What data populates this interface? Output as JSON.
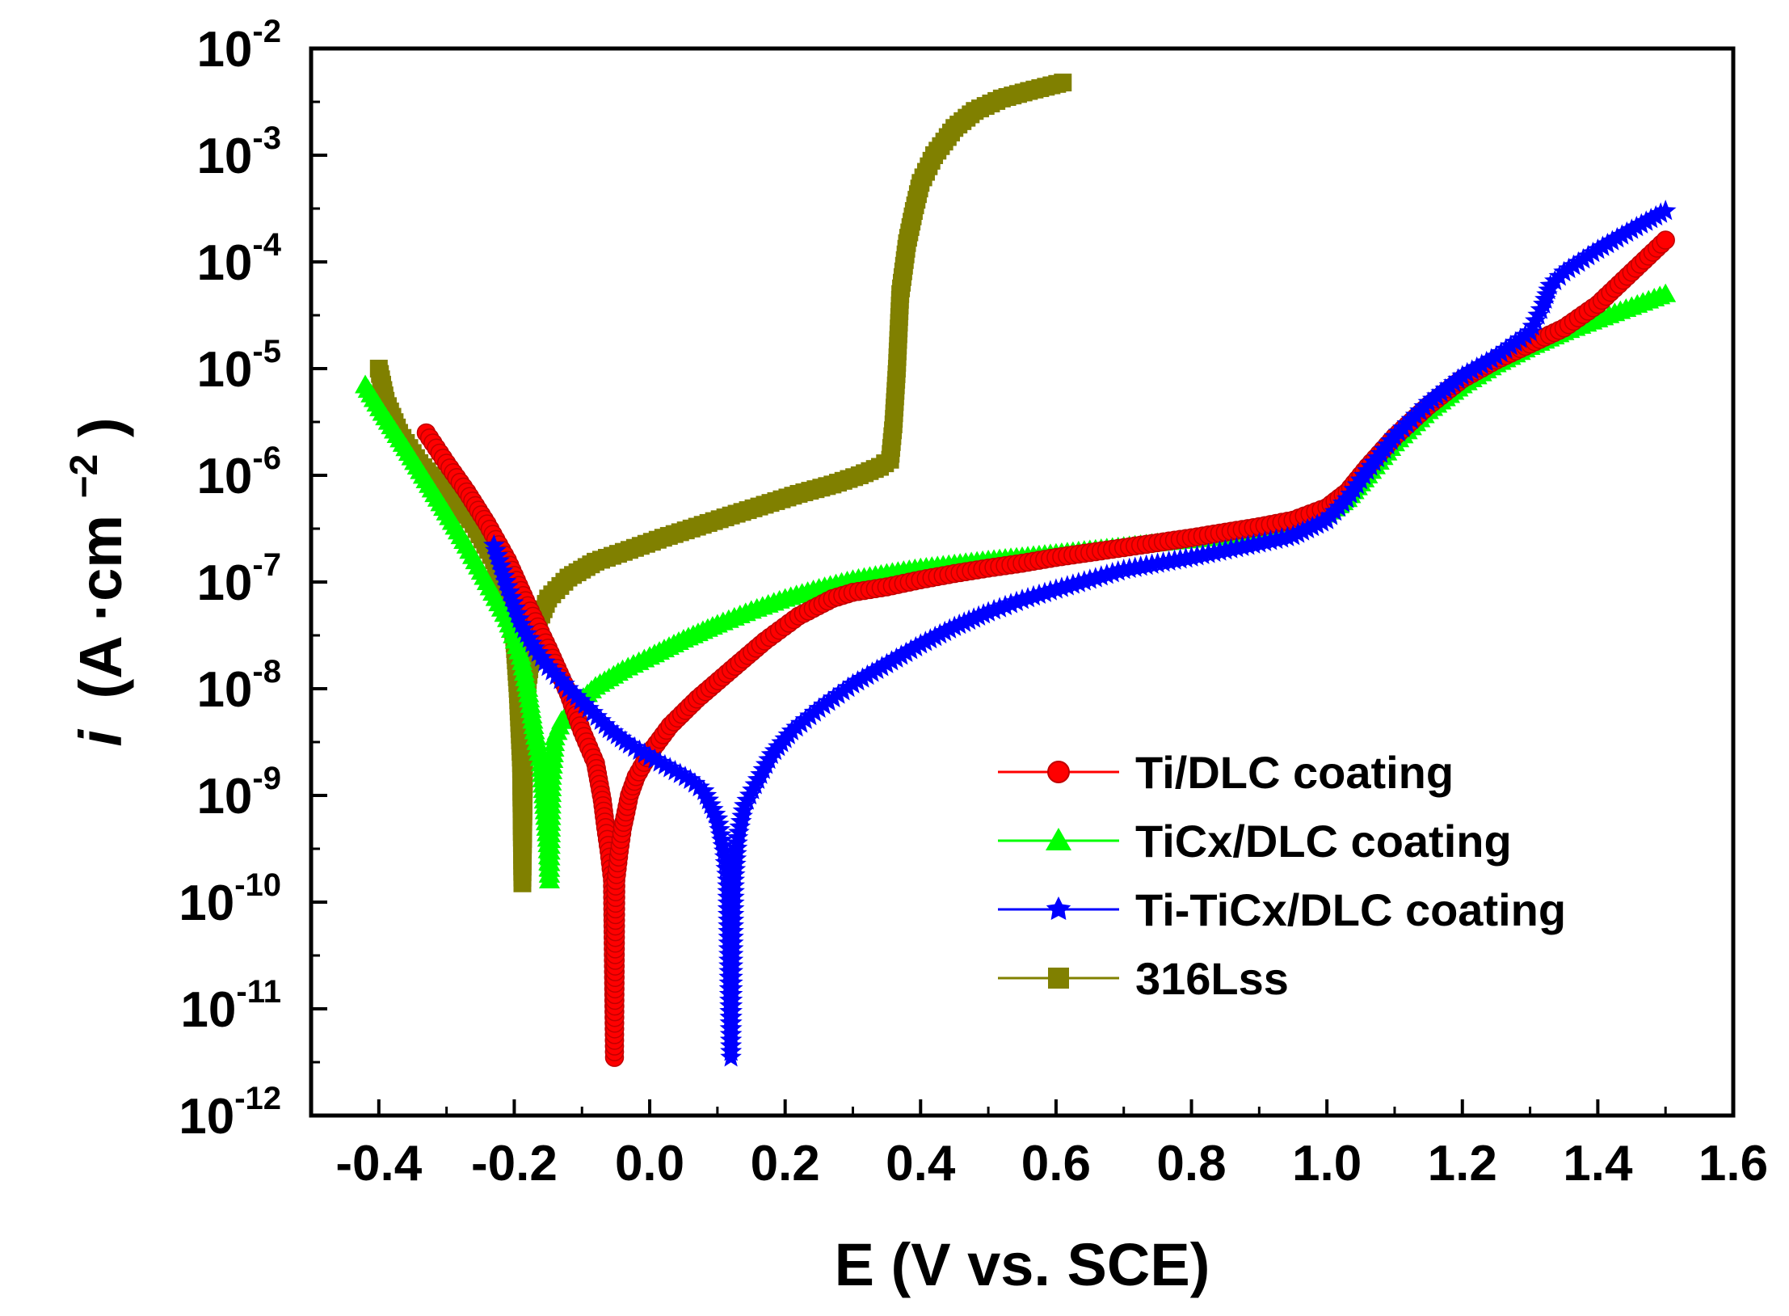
{
  "chart_data": {
    "type": "line",
    "title": "",
    "xlabel": "E (V vs. SCE)",
    "ylabel_italic": "i",
    "ylabel_unit": "(A ·cm",
    "ylabel_unit_exp": "−2",
    "ylabel_close": ")",
    "y_scale": "log",
    "xlim": [
      -0.5,
      1.6
    ],
    "ylim_exp": [
      -12,
      -2
    ],
    "x_ticks": [
      -0.4,
      -0.2,
      0.0,
      0.2,
      0.4,
      0.6,
      0.8,
      1.0,
      1.2,
      1.4,
      1.6
    ],
    "x_tick_labels": [
      "-0.4",
      "-0.2",
      "0.0",
      "0.2",
      "0.4",
      "0.6",
      "0.8",
      "1.0",
      "1.2",
      "1.4",
      "1.6"
    ],
    "y_tick_exponents": [
      -12,
      -11,
      -10,
      -9,
      -8,
      -7,
      -6,
      -5,
      -4,
      -3,
      -2
    ],
    "y_tick_base": "10",
    "y_tick_exp_labels": [
      "-12",
      "-11",
      "-10",
      "-9",
      "-8",
      "-7",
      "-6",
      "-5",
      "-4",
      "-3",
      "-2"
    ],
    "legend_position": "lower-right",
    "series": [
      {
        "name": "Ti/DLC coating",
        "color": "#ff0000",
        "marker": "circle",
        "points": [
          [
            -0.33,
            2.5e-06
          ],
          [
            -0.3,
            1.3e-06
          ],
          [
            -0.27,
            7e-07
          ],
          [
            -0.24,
            3.5e-07
          ],
          [
            -0.21,
            1.6e-07
          ],
          [
            -0.18,
            6e-08
          ],
          [
            -0.15,
            2.4e-08
          ],
          [
            -0.12,
            9e-09
          ],
          [
            -0.1,
            4e-09
          ],
          [
            -0.08,
            2e-09
          ],
          [
            -0.07,
            9e-10
          ],
          [
            -0.065,
            5e-10
          ],
          [
            -0.06,
            3e-10
          ],
          [
            -0.055,
            1.6e-10
          ],
          [
            -0.052,
            3.5e-12
          ],
          [
            -0.05,
            1.6e-10
          ],
          [
            -0.045,
            3e-10
          ],
          [
            -0.04,
            5e-10
          ],
          [
            -0.035,
            7e-10
          ],
          [
            -0.03,
            1e-09
          ],
          [
            -0.02,
            1.5e-09
          ],
          [
            0.0,
            2.5e-09
          ],
          [
            0.03,
            4.5e-09
          ],
          [
            0.07,
            8e-09
          ],
          [
            0.12,
            1.5e-08
          ],
          [
            0.17,
            2.8e-08
          ],
          [
            0.22,
            4.8e-08
          ],
          [
            0.27,
            7e-08
          ],
          [
            0.3,
            8e-08
          ],
          [
            0.35,
            9e-08
          ],
          [
            0.4,
            1.05e-07
          ],
          [
            0.45,
            1.2e-07
          ],
          [
            0.5,
            1.35e-07
          ],
          [
            0.55,
            1.5e-07
          ],
          [
            0.6,
            1.7e-07
          ],
          [
            0.7,
            2.1e-07
          ],
          [
            0.8,
            2.6e-07
          ],
          [
            0.9,
            3.3e-07
          ],
          [
            0.95,
            3.8e-07
          ],
          [
            1.0,
            5e-07
          ],
          [
            1.03,
            7e-07
          ],
          [
            1.06,
            1.2e-06
          ],
          [
            1.1,
            2.3e-06
          ],
          [
            1.15,
            4.5e-06
          ],
          [
            1.2,
            8e-06
          ],
          [
            1.25,
            1.2e-05
          ],
          [
            1.3,
            1.7e-05
          ],
          [
            1.35,
            2.4e-05
          ],
          [
            1.4,
            4e-05
          ],
          [
            1.45,
            8e-05
          ],
          [
            1.5,
            0.00016
          ]
        ]
      },
      {
        "name": "TiCx/DLC coating",
        "color": "#00ff00",
        "marker": "triangle",
        "points": [
          [
            -0.42,
            7e-06
          ],
          [
            -0.39,
            3.5e-06
          ],
          [
            -0.36,
            1.8e-06
          ],
          [
            -0.33,
            9e-07
          ],
          [
            -0.3,
            4.5e-07
          ],
          [
            -0.27,
            2.2e-07
          ],
          [
            -0.24,
            1e-07
          ],
          [
            -0.21,
            4.5e-08
          ],
          [
            -0.19,
            2e-08
          ],
          [
            -0.18,
            1e-08
          ],
          [
            -0.17,
            4e-09
          ],
          [
            -0.16,
            2e-09
          ],
          [
            -0.155,
            8e-10
          ],
          [
            -0.15,
            3.5e-10
          ],
          [
            -0.148,
            1.6e-10
          ],
          [
            -0.145,
            1.5e-09
          ],
          [
            -0.14,
            3.5e-09
          ],
          [
            -0.13,
            5e-09
          ],
          [
            -0.11,
            7e-09
          ],
          [
            -0.08,
            1.05e-08
          ],
          [
            -0.04,
            1.5e-08
          ],
          [
            0.0,
            2e-08
          ],
          [
            0.05,
            2.9e-08
          ],
          [
            0.1,
            4e-08
          ],
          [
            0.15,
            5.4e-08
          ],
          [
            0.2,
            7e-08
          ],
          [
            0.25,
            8.7e-08
          ],
          [
            0.3,
            1.05e-07
          ],
          [
            0.35,
            1.2e-07
          ],
          [
            0.4,
            1.35e-07
          ],
          [
            0.5,
            1.6e-07
          ],
          [
            0.6,
            1.85e-07
          ],
          [
            0.7,
            2.15e-07
          ],
          [
            0.8,
            2.5e-07
          ],
          [
            0.9,
            2.9e-07
          ],
          [
            0.95,
            3.3e-07
          ],
          [
            1.0,
            4.3e-07
          ],
          [
            1.03,
            6e-07
          ],
          [
            1.06,
            1e-06
          ],
          [
            1.1,
            2e-06
          ],
          [
            1.15,
            4e-06
          ],
          [
            1.2,
            7e-06
          ],
          [
            1.25,
            1.1e-05
          ],
          [
            1.3,
            1.6e-05
          ],
          [
            1.35,
            2.2e-05
          ],
          [
            1.4,
            2.9e-05
          ],
          [
            1.45,
            3.8e-05
          ],
          [
            1.5,
            5e-05
          ]
        ]
      },
      {
        "name": "Ti-TiCx/DLC coating",
        "color": "#0000ff",
        "marker": "star",
        "points": [
          [
            -0.23,
            2.2e-07
          ],
          [
            -0.21,
            9e-08
          ],
          [
            -0.19,
            4e-08
          ],
          [
            -0.17,
            2.4e-08
          ],
          [
            -0.15,
            1.6e-08
          ],
          [
            -0.12,
            1e-08
          ],
          [
            -0.09,
            6.5e-09
          ],
          [
            -0.06,
            4.2e-09
          ],
          [
            -0.03,
            3e-09
          ],
          [
            0.0,
            2.3e-09
          ],
          [
            0.03,
            1.8e-09
          ],
          [
            0.06,
            1.4e-09
          ],
          [
            0.08,
            1.1e-09
          ],
          [
            0.1,
            6e-10
          ],
          [
            0.11,
            3e-10
          ],
          [
            0.115,
            1.6e-10
          ],
          [
            0.12,
            3.5e-12
          ],
          [
            0.125,
            1.6e-10
          ],
          [
            0.13,
            4e-10
          ],
          [
            0.14,
            8e-10
          ],
          [
            0.16,
            1.4e-09
          ],
          [
            0.18,
            2.4e-09
          ],
          [
            0.21,
            4e-09
          ],
          [
            0.25,
            6.5e-09
          ],
          [
            0.3,
            1.1e-08
          ],
          [
            0.35,
            1.7e-08
          ],
          [
            0.4,
            2.6e-08
          ],
          [
            0.45,
            3.8e-08
          ],
          [
            0.5,
            5.2e-08
          ],
          [
            0.55,
            6.8e-08
          ],
          [
            0.6,
            8.5e-08
          ],
          [
            0.65,
            1.05e-07
          ],
          [
            0.7,
            1.3e-07
          ],
          [
            0.8,
            1.7e-07
          ],
          [
            0.9,
            2.3e-07
          ],
          [
            0.95,
            2.7e-07
          ],
          [
            1.0,
            3.8e-07
          ],
          [
            1.03,
            6e-07
          ],
          [
            1.06,
            1.1e-06
          ],
          [
            1.1,
            2.3e-06
          ],
          [
            1.15,
            4.8e-06
          ],
          [
            1.2,
            8.5e-06
          ],
          [
            1.25,
            1.3e-05
          ],
          [
            1.3,
            2.2e-05
          ],
          [
            1.32,
            4e-05
          ],
          [
            1.33,
            6e-05
          ],
          [
            1.35,
            8e-05
          ],
          [
            1.4,
            0.00013
          ],
          [
            1.45,
            0.0002
          ],
          [
            1.5,
            0.0003
          ]
        ]
      },
      {
        "name": "316Lss",
        "color": "#808000",
        "marker": "square",
        "points": [
          [
            -0.4,
            1e-05
          ],
          [
            -0.39,
            5e-06
          ],
          [
            -0.37,
            2.5e-06
          ],
          [
            -0.34,
            1.3e-06
          ],
          [
            -0.3,
            7e-07
          ],
          [
            -0.26,
            3.5e-07
          ],
          [
            -0.23,
            1.6e-07
          ],
          [
            -0.21,
            7e-08
          ],
          [
            -0.2,
            3e-08
          ],
          [
            -0.195,
            1e-08
          ],
          [
            -0.19,
            2e-09
          ],
          [
            -0.188,
            1.5e-10
          ],
          [
            -0.185,
            3e-09
          ],
          [
            -0.18,
            1.2e-08
          ],
          [
            -0.17,
            3.5e-08
          ],
          [
            -0.15,
            7e-08
          ],
          [
            -0.12,
            1.1e-07
          ],
          [
            -0.08,
            1.55e-07
          ],
          [
            -0.03,
            2e-07
          ],
          [
            0.02,
            2.6e-07
          ],
          [
            0.07,
            3.3e-07
          ],
          [
            0.12,
            4.2e-07
          ],
          [
            0.17,
            5.3e-07
          ],
          [
            0.22,
            6.7e-07
          ],
          [
            0.27,
            8.2e-07
          ],
          [
            0.31,
            1e-06
          ],
          [
            0.34,
            1.2e-06
          ],
          [
            0.355,
            1.4e-06
          ],
          [
            0.36,
            3e-06
          ],
          [
            0.365,
            1e-05
          ],
          [
            0.37,
            5e-05
          ],
          [
            0.38,
            0.00015
          ],
          [
            0.39,
            0.0003
          ],
          [
            0.4,
            0.00055
          ],
          [
            0.42,
            0.001
          ],
          [
            0.45,
            0.0018
          ],
          [
            0.48,
            0.0026
          ],
          [
            0.52,
            0.0034
          ],
          [
            0.56,
            0.004
          ],
          [
            0.61,
            0.0048
          ]
        ]
      }
    ]
  }
}
